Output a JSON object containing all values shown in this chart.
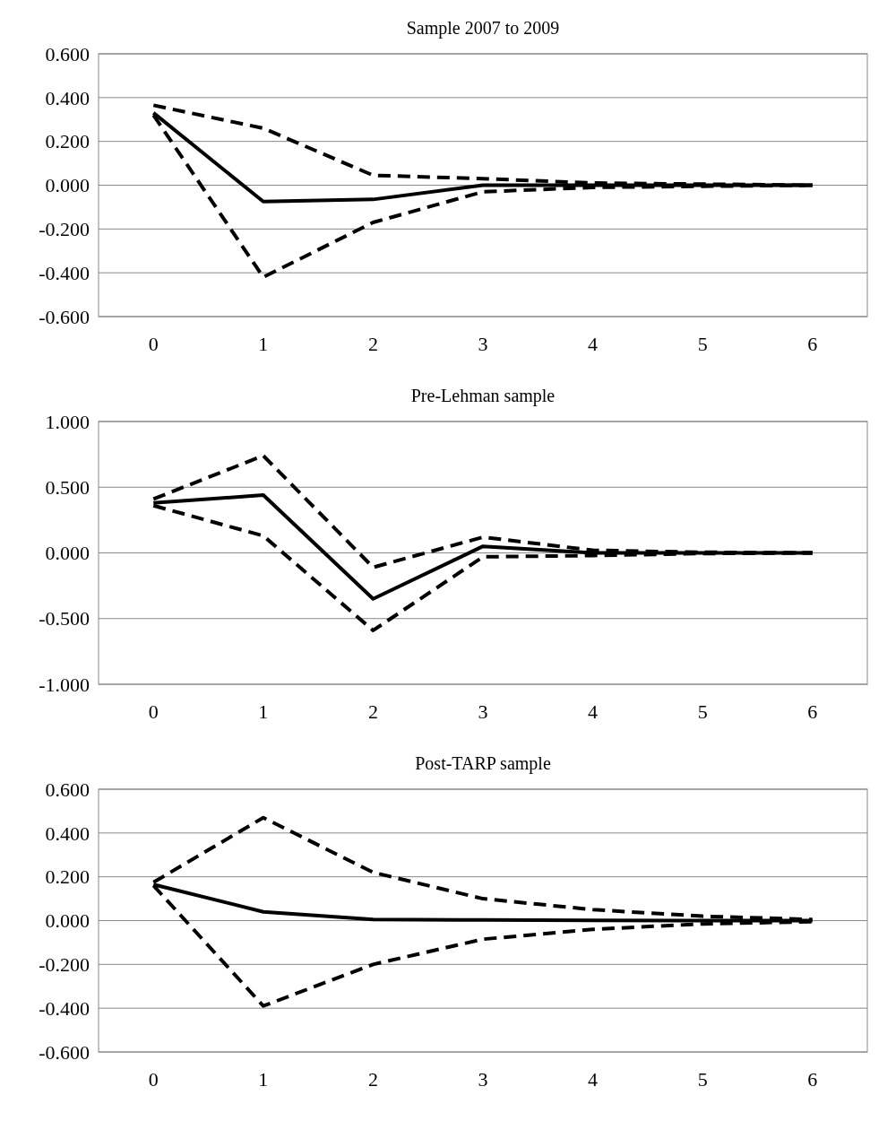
{
  "chart_data": [
    {
      "type": "line",
      "title": "Sample 2007 to 2009",
      "categories": [
        "0",
        "1",
        "2",
        "3",
        "4",
        "5",
        "6"
      ],
      "ylim": [
        -0.6,
        0.6
      ],
      "yticks": [
        {
          "value": -0.6,
          "label": "-0.600"
        },
        {
          "value": -0.4,
          "label": "-0.400"
        },
        {
          "value": -0.2,
          "label": "-0.200"
        },
        {
          "value": 0,
          "label": "0.000"
        },
        {
          "value": 0.2,
          "label": "0.200"
        },
        {
          "value": 0.4,
          "label": "0.400"
        },
        {
          "value": 0.6,
          "label": "0.600"
        }
      ],
      "grid": "y",
      "series": [
        {
          "color": "#000000",
          "line_style": "solid",
          "values": [
            0.33,
            -0.075,
            -0.065,
            0,
            0,
            0,
            0
          ]
        },
        {
          "color": "#000000",
          "line_style": "dashed",
          "values": [
            0.365,
            0.26,
            0.045,
            0.03,
            0.01,
            0.005,
            0
          ]
        },
        {
          "color": "#000000",
          "line_style": "dashed",
          "values": [
            0.32,
            -0.42,
            -0.17,
            -0.03,
            -0.01,
            -0.005,
            0
          ]
        }
      ]
    },
    {
      "type": "line",
      "title": "Pre-Lehman sample",
      "categories": [
        "0",
        "1",
        "2",
        "3",
        "4",
        "5",
        "6"
      ],
      "ylim": [
        -1,
        1
      ],
      "yticks": [
        {
          "value": -1,
          "label": "-1.000"
        },
        {
          "value": -0.5,
          "label": "-0.500"
        },
        {
          "value": 0,
          "label": "0.000"
        },
        {
          "value": 0.5,
          "label": "0.500"
        },
        {
          "value": 1,
          "label": "1.000"
        }
      ],
      "grid": "y",
      "series": [
        {
          "color": "#000000",
          "line_style": "solid",
          "values": [
            0.38,
            0.44,
            -0.35,
            0.05,
            0,
            0,
            0
          ]
        },
        {
          "color": "#000000",
          "line_style": "dashed",
          "values": [
            0.41,
            0.74,
            -0.11,
            0.12,
            0.02,
            0.005,
            0
          ]
        },
        {
          "color": "#000000",
          "line_style": "dashed",
          "values": [
            0.36,
            0.13,
            -0.59,
            -0.03,
            -0.02,
            -0.005,
            0
          ]
        }
      ]
    },
    {
      "type": "line",
      "title": "Post-TARP sample",
      "categories": [
        "0",
        "1",
        "2",
        "3",
        "4",
        "5",
        "6"
      ],
      "ylim": [
        -0.6,
        0.6
      ],
      "yticks": [
        {
          "value": -0.6,
          "label": "-0.600"
        },
        {
          "value": -0.4,
          "label": "-0.400"
        },
        {
          "value": -0.2,
          "label": "-0.200"
        },
        {
          "value": 0,
          "label": "0.000"
        },
        {
          "value": 0.2,
          "label": "0.200"
        },
        {
          "value": 0.4,
          "label": "0.400"
        },
        {
          "value": 0.6,
          "label": "0.600"
        }
      ],
      "grid": "y",
      "series": [
        {
          "color": "#000000",
          "line_style": "solid",
          "values": [
            0.165,
            0.04,
            0.005,
            0.003,
            0.001,
            0,
            0
          ]
        },
        {
          "color": "#000000",
          "line_style": "dashed",
          "values": [
            0.175,
            0.47,
            0.22,
            0.1,
            0.05,
            0.02,
            0.005
          ]
        },
        {
          "color": "#000000",
          "line_style": "dashed",
          "values": [
            0.16,
            -0.39,
            -0.2,
            -0.085,
            -0.04,
            -0.015,
            -0.005
          ]
        }
      ]
    }
  ]
}
